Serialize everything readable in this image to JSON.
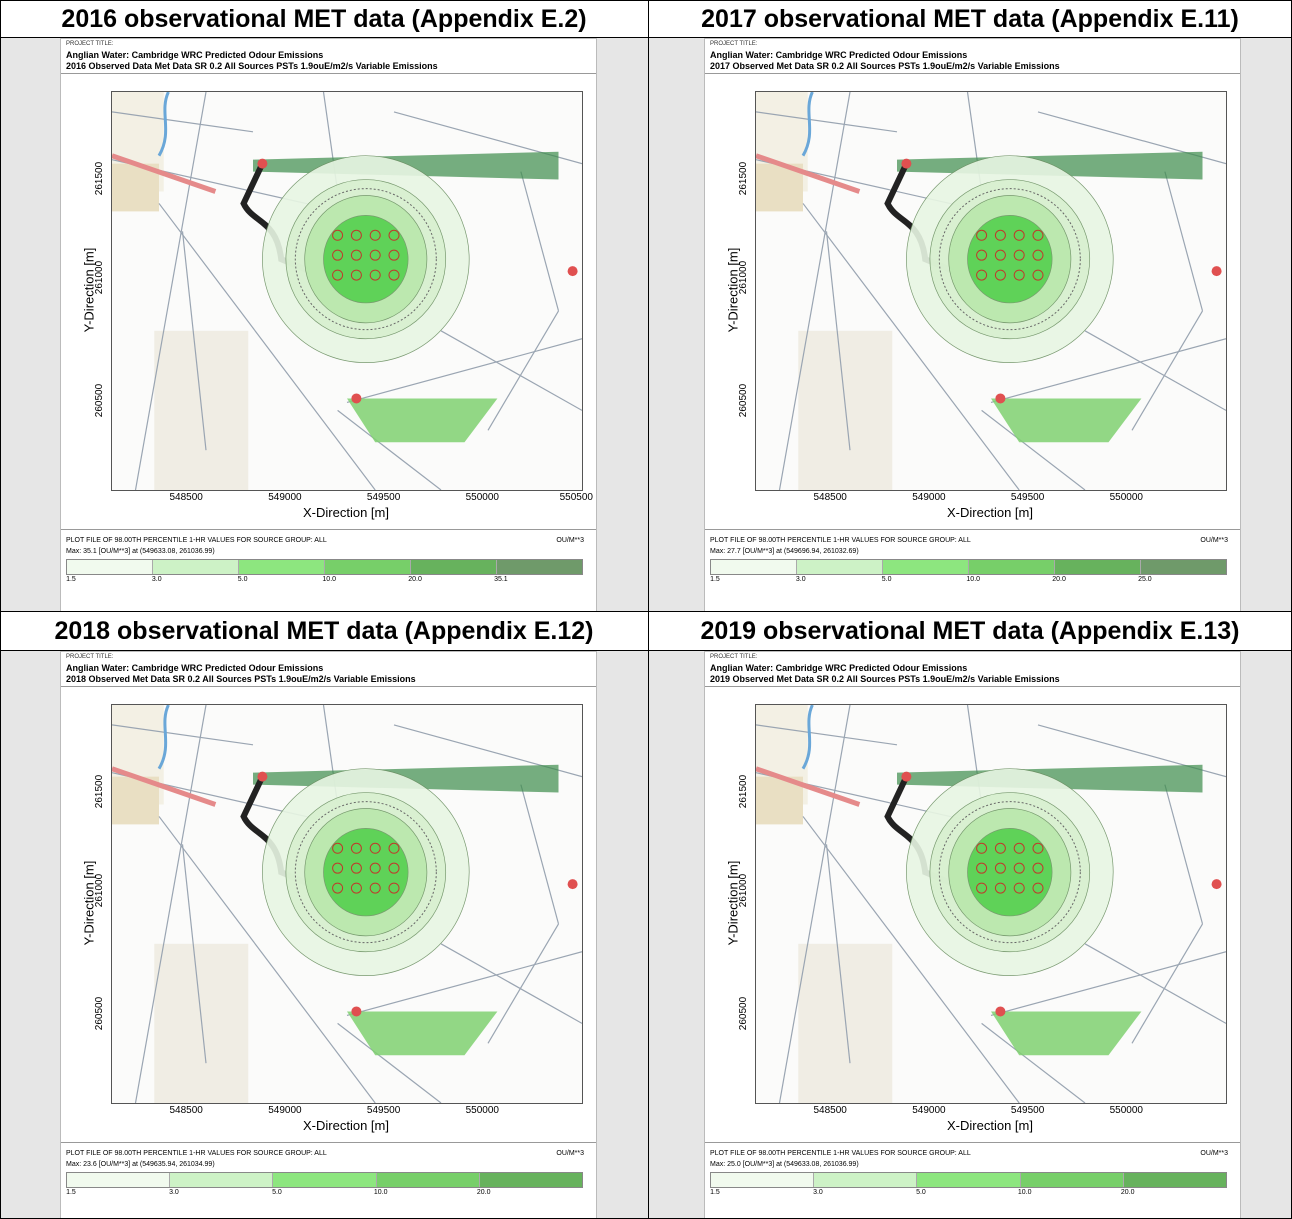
{
  "panels": [
    {
      "heading": "2016 observational MET data (Appendix E.2)",
      "project_label": "PROJECT TITLE:",
      "title_line1": "Anglian Water: Cambridge WRC Predicted Odour Emissions",
      "title_line2": "2016 Observed Data Met Data SR 0.2  All Sources PSTs 1.9ouE/m2/s Variable Emissions",
      "y_axis_label": "Y-Direction [m]",
      "y_ticks": [
        "261500",
        "261000",
        "260500"
      ],
      "x_axis_label": "X-Direction [m]",
      "x_ticks": [
        "548500",
        "549000",
        "549500",
        "550000",
        "550500"
      ],
      "plot_file_line": "PLOT FILE OF 98.00TH PERCENTILE 1-HR VALUES FOR SOURCE GROUP: ALL",
      "max_line": "Max:  35.1  [OU/M**3]  at  (549633.08, 261036.99)",
      "units": "OU/M**3",
      "legend_ticks": [
        "1.5",
        "3.0",
        "5.0",
        "10.0",
        "20.0",
        "35.1"
      ]
    },
    {
      "heading": "2017 observational MET data (Appendix E.11)",
      "project_label": "PROJECT TITLE:",
      "title_line1": "Anglian Water: Cambridge WRC Predicted Odour Emissions",
      "title_line2": "2017 Observed Met Data SR 0.2  All Sources PSTs 1.9ouE/m2/s Variable Emissions",
      "y_axis_label": "Y-Direction [m]",
      "y_ticks": [
        "261500",
        "261000",
        "260500"
      ],
      "x_axis_label": "X-Direction [m]",
      "x_ticks": [
        "548500",
        "549000",
        "549500",
        "550000"
      ],
      "plot_file_line": "PLOT FILE OF 98.00TH PERCENTILE 1-HR VALUES FOR SOURCE GROUP: ALL",
      "max_line": "Max:  27.7  [OU/M**3]  at  (549696.94, 261032.69)",
      "units": "OU/M**3",
      "legend_ticks": [
        "1.5",
        "3.0",
        "5.0",
        "10.0",
        "20.0",
        "25.0"
      ]
    },
    {
      "heading": "2018 observational MET data (Appendix E.12)",
      "project_label": "PROJECT TITLE:",
      "title_line1": "Anglian Water: Cambridge WRC Predicted Odour Emissions",
      "title_line2": "2018 Observed Met Data SR 0.2  All Sources PSTs 1.9ouE/m2/s Variable Emissions",
      "y_axis_label": "Y-Direction [m]",
      "y_ticks": [
        "261500",
        "261000",
        "260500"
      ],
      "x_axis_label": "X-Direction [m]",
      "x_ticks": [
        "548500",
        "549000",
        "549500",
        "550000"
      ],
      "plot_file_line": "PLOT FILE OF 98.00TH PERCENTILE 1-HR VALUES FOR SOURCE GROUP: ALL",
      "max_line": "Max:  23.6  [OU/M**3]  at  (549635.94, 261034.99)",
      "units": "OU/M**3",
      "legend_ticks": [
        "1.5",
        "3.0",
        "5.0",
        "10.0",
        "20.0"
      ]
    },
    {
      "heading": "2019 observational MET data (Appendix E.13)",
      "project_label": "PROJECT TITLE:",
      "title_line1": "Anglian Water: Cambridge WRC Predicted Odour Emissions",
      "title_line2": "2019 Observed Met Data SR 0.2  All Sources PSTs 1.9ouE/m2/s Variable Emissions",
      "y_axis_label": "Y-Direction [m]",
      "y_ticks": [
        "261500",
        "261000",
        "260500"
      ],
      "x_axis_label": "X-Direction [m]",
      "x_ticks": [
        "548500",
        "549000",
        "549500",
        "550000"
      ],
      "plot_file_line": "PLOT FILE OF 98.00TH PERCENTILE 1-HR VALUES FOR SOURCE GROUP: ALL",
      "max_line": "Max:  25.0  [OU/M**3]  at  (549633.08, 261036.99)",
      "units": "OU/M**3",
      "legend_ticks": [
        "1.5",
        "3.0",
        "5.0",
        "10.0",
        "20.0"
      ]
    }
  ],
  "colors": {
    "legend": [
      "#f1faee",
      "#cdf2c6",
      "#8de67f",
      "#77cf69",
      "#67b25d",
      "#6f9a6a"
    ],
    "contour_light": "#e8f6e3",
    "contour_mid": "#b9e8ac",
    "contour_core": "#4fcf4a",
    "field_green": "#7fd070",
    "road": "#222222",
    "marker_red": "#e05050"
  }
}
